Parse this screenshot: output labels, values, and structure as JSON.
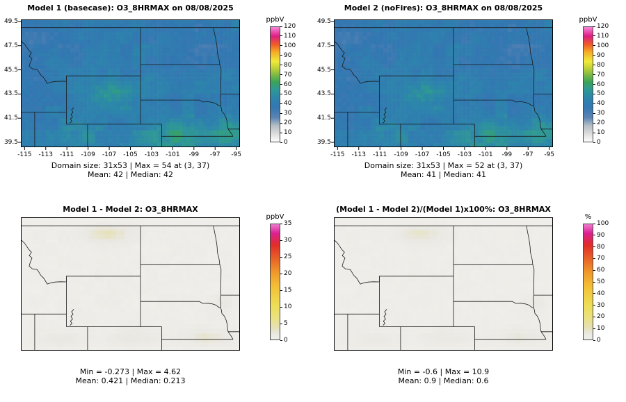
{
  "chart_data": [
    {
      "type": "heatmap",
      "panel": "top-left",
      "title": "Model 1 (basecase): O3_8HRMAX on 08/08/2025",
      "variable": "O3_8HRMAX",
      "date": "08/08/2025",
      "stats_line1": "Domain size: 31x53 | Max = 54 at (3, 37)",
      "stats_line2": "Mean: 42 |  Median: 42",
      "stats": {
        "domain_size": "31x53",
        "max": 54,
        "max_at": "(3, 37)",
        "mean": 42,
        "median": 42
      },
      "xlim": [
        -115.35,
        -94.65
      ],
      "ylim": [
        39.1,
        49.67
      ],
      "x_ticks": [
        -115,
        -113,
        -111,
        -109,
        -107,
        -105,
        -103,
        -101,
        -99,
        -97,
        -95
      ],
      "y_ticks": [
        39.5,
        41.5,
        43.5,
        45.5,
        47.5,
        49.5
      ],
      "grid": false,
      "legend_position": "right",
      "colorbar": {
        "label": "ppbV",
        "min": 0,
        "max": 120,
        "ticks": [
          0,
          10,
          20,
          30,
          40,
          50,
          60,
          70,
          80,
          90,
          100,
          110,
          120
        ],
        "stops": [
          [
            0,
            "#fefefe"
          ],
          [
            0.07,
            "#dcdcdc"
          ],
          [
            0.14,
            "#b4bec6"
          ],
          [
            0.21,
            "#5b84b4"
          ],
          [
            0.3,
            "#3377b2"
          ],
          [
            0.38,
            "#2d85ac"
          ],
          [
            0.46,
            "#2f9a92"
          ],
          [
            0.52,
            "#3aa359"
          ],
          [
            0.58,
            "#7ab944"
          ],
          [
            0.65,
            "#c8d437"
          ],
          [
            0.7,
            "#f0ea3a"
          ],
          [
            0.78,
            "#f5ad27"
          ],
          [
            0.85,
            "#ee5a28"
          ],
          [
            0.92,
            "#dc1f84"
          ],
          [
            1,
            "#f884d8"
          ]
        ]
      },
      "field": {
        "rows": 31,
        "cols": 53,
        "seed": 7,
        "base": 40,
        "noise": 2.7,
        "edge_fade": false,
        "blobs": [
          {
            "cx": -106.8,
            "cy": 43.4,
            "sx": 2.6,
            "sy": 1.3,
            "amp": 14
          },
          {
            "cx": -100.5,
            "cy": 40.0,
            "sx": 3.6,
            "sy": 1.4,
            "amp": 16
          },
          {
            "cx": -95.6,
            "cy": 40.4,
            "sx": 1.8,
            "sy": 1.2,
            "amp": 11
          },
          {
            "cx": -109.8,
            "cy": 40.0,
            "sx": 2.4,
            "sy": 1.1,
            "amp": 9
          },
          {
            "cx": -103.5,
            "cy": 44.0,
            "sx": 1.5,
            "sy": 0.9,
            "amp": 6
          },
          {
            "cx": -113.0,
            "cy": 47.9,
            "sx": 2.8,
            "sy": 1.5,
            "amp": -7
          },
          {
            "cx": -99.0,
            "cy": 47.5,
            "sx": 3.4,
            "sy": 1.8,
            "amp": -5
          },
          {
            "cx": -114.8,
            "cy": 44.3,
            "sx": 1.5,
            "sy": 1.8,
            "amp": -5
          }
        ]
      }
    },
    {
      "type": "heatmap",
      "panel": "top-right",
      "title": "Model 2 (noFires): O3_8HRMAX on 08/08/2025",
      "variable": "O3_8HRMAX",
      "date": "08/08/2025",
      "stats_line1": "Domain size: 31x53 | Max = 52 at (3, 37)",
      "stats_line2": "Mean: 41 |  Median: 41",
      "stats": {
        "domain_size": "31x53",
        "max": 52,
        "max_at": "(3, 37)",
        "mean": 41,
        "median": 41
      },
      "xlim": [
        -115.35,
        -94.65
      ],
      "ylim": [
        39.1,
        49.67
      ],
      "x_ticks": [
        -115,
        -113,
        -111,
        -109,
        -107,
        -105,
        -103,
        -101,
        -99,
        -97,
        -95
      ],
      "y_ticks": [
        39.5,
        41.5,
        43.5,
        45.5,
        47.5,
        49.5
      ],
      "grid": false,
      "legend_position": "right",
      "colorbar": {
        "label": "ppbV",
        "min": 0,
        "max": 120,
        "ticks": [
          0,
          10,
          20,
          30,
          40,
          50,
          60,
          70,
          80,
          90,
          100,
          110,
          120
        ],
        "stops": [
          [
            0,
            "#fefefe"
          ],
          [
            0.07,
            "#dcdcdc"
          ],
          [
            0.14,
            "#b4bec6"
          ],
          [
            0.21,
            "#5b84b4"
          ],
          [
            0.3,
            "#3377b2"
          ],
          [
            0.38,
            "#2d85ac"
          ],
          [
            0.46,
            "#2f9a92"
          ],
          [
            0.52,
            "#3aa359"
          ],
          [
            0.58,
            "#7ab944"
          ],
          [
            0.65,
            "#c8d437"
          ],
          [
            0.7,
            "#f0ea3a"
          ],
          [
            0.78,
            "#f5ad27"
          ],
          [
            0.85,
            "#ee5a28"
          ],
          [
            0.92,
            "#dc1f84"
          ],
          [
            1,
            "#f884d8"
          ]
        ]
      },
      "field": {
        "rows": 31,
        "cols": 53,
        "seed": 7,
        "base": 39.5,
        "noise": 2.7,
        "edge_fade": false,
        "blobs": [
          {
            "cx": -106.8,
            "cy": 43.4,
            "sx": 2.6,
            "sy": 1.3,
            "amp": 12.5
          },
          {
            "cx": -100.5,
            "cy": 40.0,
            "sx": 3.6,
            "sy": 1.4,
            "amp": 14
          },
          {
            "cx": -95.6,
            "cy": 40.4,
            "sx": 1.8,
            "sy": 1.2,
            "amp": 10
          },
          {
            "cx": -109.8,
            "cy": 40.0,
            "sx": 2.4,
            "sy": 1.1,
            "amp": 8
          },
          {
            "cx": -103.5,
            "cy": 44.0,
            "sx": 1.5,
            "sy": 0.9,
            "amp": 5.5
          },
          {
            "cx": -113.0,
            "cy": 47.9,
            "sx": 2.8,
            "sy": 1.5,
            "amp": -7
          },
          {
            "cx": -99.0,
            "cy": 47.5,
            "sx": 3.4,
            "sy": 1.8,
            "amp": -5
          },
          {
            "cx": -114.8,
            "cy": 44.3,
            "sx": 1.5,
            "sy": 1.8,
            "amp": -5
          }
        ]
      }
    },
    {
      "type": "heatmap",
      "panel": "bottom-left",
      "title": "Model 1 - Model 2: O3_8HRMAX",
      "variable": "O3_8HRMAX",
      "stats_line1": "Min = -0.273 | Max = 4.62",
      "stats_line2": "Mean: 0.421 |  Median: 0.213",
      "stats": {
        "min": -0.273,
        "max": 4.62,
        "mean": 0.421,
        "median": 0.213
      },
      "xlim": [
        -115.35,
        -94.65
      ],
      "ylim": [
        39.1,
        49.67
      ],
      "x_ticks": [],
      "y_ticks": [],
      "grid": false,
      "legend_position": "right",
      "colorbar": {
        "label": "ppbV",
        "min": 0,
        "max": 35,
        "ticks": [
          0,
          5,
          10,
          15,
          20,
          25,
          30,
          35
        ],
        "stops": [
          [
            0,
            "#efeeea"
          ],
          [
            0.05,
            "#e9e8e2"
          ],
          [
            0.1,
            "#e6e0b8"
          ],
          [
            0.18,
            "#eae186"
          ],
          [
            0.3,
            "#eedd55"
          ],
          [
            0.45,
            "#f2c238"
          ],
          [
            0.58,
            "#f0992b"
          ],
          [
            0.7,
            "#e96228"
          ],
          [
            0.82,
            "#e22d28"
          ],
          [
            0.92,
            "#da2090"
          ],
          [
            1,
            "#f07ad0"
          ]
        ]
      },
      "field": {
        "rows": 31,
        "cols": 53,
        "seed": 11,
        "base": 0.35,
        "noise": 0.2,
        "edge_fade": true,
        "blobs": [
          {
            "cx": -107.2,
            "cy": 48.4,
            "sx": 2.2,
            "sy": 0.8,
            "amp": 3.1
          },
          {
            "cx": -111.5,
            "cy": 39.6,
            "sx": 2.0,
            "sy": 0.8,
            "amp": 2.2
          },
          {
            "cx": -104.5,
            "cy": 39.8,
            "sx": 2.5,
            "sy": 0.9,
            "amp": 2.0
          },
          {
            "cx": -97.5,
            "cy": 39.9,
            "sx": 2.5,
            "sy": 0.9,
            "amp": 2.4
          },
          {
            "cx": -96.0,
            "cy": 42.8,
            "sx": 1.2,
            "sy": 0.8,
            "amp": 1.3
          }
        ]
      }
    },
    {
      "type": "heatmap",
      "panel": "bottom-right",
      "title": "(Model 1 - Model 2)/(Model 1)x100%: O3_8HRMAX",
      "variable": "O3_8HRMAX",
      "stats_line1": "Min = -0.6 | Max = 10.9",
      "stats_line2": "Mean: 0.9 |  Median: 0.6",
      "stats": {
        "min": -0.6,
        "max": 10.9,
        "mean": 0.9,
        "median": 0.6
      },
      "xlim": [
        -115.35,
        -94.65
      ],
      "ylim": [
        39.1,
        49.67
      ],
      "x_ticks": [],
      "y_ticks": [],
      "grid": false,
      "legend_position": "right",
      "colorbar": {
        "label": "%",
        "min": 0,
        "max": 100,
        "ticks": [
          0,
          10,
          20,
          30,
          40,
          50,
          60,
          70,
          80,
          90,
          100
        ],
        "stops": [
          [
            0,
            "#efeeea"
          ],
          [
            0.05,
            "#e9e8e2"
          ],
          [
            0.1,
            "#e6e0b8"
          ],
          [
            0.18,
            "#eae186"
          ],
          [
            0.3,
            "#eedd55"
          ],
          [
            0.45,
            "#f2c238"
          ],
          [
            0.58,
            "#f0992b"
          ],
          [
            0.7,
            "#e96228"
          ],
          [
            0.82,
            "#e22d28"
          ],
          [
            0.92,
            "#da2090"
          ],
          [
            1,
            "#f07ad0"
          ]
        ]
      },
      "field": {
        "rows": 31,
        "cols": 53,
        "seed": 11,
        "base": 0.9,
        "noise": 0.45,
        "edge_fade": true,
        "blobs": [
          {
            "cx": -107.2,
            "cy": 48.4,
            "sx": 2.2,
            "sy": 0.8,
            "amp": 7.1
          },
          {
            "cx": -111.5,
            "cy": 39.6,
            "sx": 2.0,
            "sy": 0.8,
            "amp": 5.0
          },
          {
            "cx": -104.5,
            "cy": 39.8,
            "sx": 2.5,
            "sy": 0.9,
            "amp": 4.6
          },
          {
            "cx": -97.5,
            "cy": 39.9,
            "sx": 2.5,
            "sy": 0.9,
            "amp": 5.5
          },
          {
            "cx": -96.0,
            "cy": 42.8,
            "sx": 1.2,
            "sy": 0.8,
            "amp": 3.0
          }
        ]
      }
    }
  ],
  "map": {
    "line_color": "#1a1a1a",
    "borders": [
      [
        [
          -115.35,
          49
        ],
        [
          -94.65,
          49
        ]
      ],
      [
        [
          -115.35,
          47.9
        ],
        [
          -115.0,
          47.62
        ],
        [
          -114.6,
          47.12
        ],
        [
          -114.35,
          46.9
        ],
        [
          -114.56,
          46.63
        ],
        [
          -114.3,
          46.45
        ],
        [
          -114.48,
          46.05
        ],
        [
          -114.56,
          45.8
        ],
        [
          -114.25,
          45.58
        ],
        [
          -113.8,
          45.52
        ],
        [
          -113.45,
          45.05
        ],
        [
          -113.2,
          44.86
        ],
        [
          -112.85,
          44.38
        ],
        [
          -112.5,
          44.48
        ],
        [
          -112.1,
          44.54
        ],
        [
          -111.6,
          44.56
        ],
        [
          -111.05,
          44.55
        ]
      ],
      [
        [
          -111.05,
          44.55
        ],
        [
          -111.05,
          45
        ],
        [
          -104.05,
          45
        ]
      ],
      [
        [
          -104.05,
          49
        ],
        [
          -104.05,
          41
        ]
      ],
      [
        [
          -111.05,
          45
        ],
        [
          -111.05,
          41
        ]
      ],
      [
        [
          -111.05,
          41
        ],
        [
          -102.05,
          41
        ]
      ],
      [
        [
          -109.05,
          41
        ],
        [
          -109.05,
          39.1
        ]
      ],
      [
        [
          -115.35,
          42
        ],
        [
          -111.05,
          42
        ]
      ],
      [
        [
          -114.04,
          42
        ],
        [
          -114.04,
          39.1
        ]
      ],
      [
        [
          -102.05,
          41
        ],
        [
          -102.05,
          39.1
        ]
      ],
      [
        [
          -102.05,
          40
        ],
        [
          -95.31,
          40
        ]
      ],
      [
        [
          -104.05,
          45.94
        ],
        [
          -96.56,
          45.94
        ]
      ],
      [
        [
          -104.05,
          43
        ],
        [
          -98.5,
          43
        ],
        [
          -98.15,
          42.84
        ],
        [
          -97.65,
          42.86
        ],
        [
          -97.25,
          42.8
        ],
        [
          -96.95,
          42.72
        ],
        [
          -96.6,
          42.51
        ],
        [
          -96.48,
          42.52
        ],
        [
          -96.4,
          42.3
        ],
        [
          -96.36,
          42.05
        ],
        [
          -96.12,
          41.83
        ],
        [
          -95.95,
          41.5
        ],
        [
          -95.86,
          41.19
        ],
        [
          -95.83,
          40.9
        ],
        [
          -95.77,
          40.6
        ],
        [
          -95.52,
          40.3
        ],
        [
          -95.31,
          40
        ]
      ],
      [
        [
          -96.56,
          45.94
        ],
        [
          -96.44,
          45.55
        ],
        [
          -96.45,
          44.5
        ],
        [
          -96.45,
          43.5
        ],
        [
          -96.53,
          43.22
        ],
        [
          -96.45,
          42.9
        ],
        [
          -96.48,
          42.52
        ]
      ],
      [
        [
          -96.56,
          45.94
        ],
        [
          -96.62,
          46.35
        ],
        [
          -96.78,
          46.9
        ],
        [
          -96.82,
          47.4
        ],
        [
          -96.92,
          47.95
        ],
        [
          -97.05,
          48.5
        ],
        [
          -97.16,
          49
        ]
      ],
      [
        [
          -96.45,
          43.5
        ],
        [
          -94.65,
          43.5
        ]
      ],
      [
        [
          -95.77,
          40.6
        ],
        [
          -94.65,
          40.6
        ]
      ],
      [
        [
          -110.35,
          42.38
        ],
        [
          -110.55,
          42.18
        ],
        [
          -110.42,
          41.98
        ],
        [
          -110.62,
          41.82
        ],
        [
          -110.47,
          41.6
        ],
        [
          -110.67,
          41.44
        ],
        [
          -110.52,
          41.25
        ],
        [
          -110.72,
          41.1
        ]
      ]
    ]
  }
}
